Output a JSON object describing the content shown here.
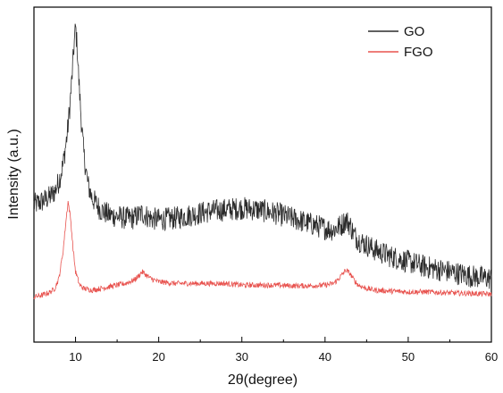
{
  "chart_data": {
    "type": "line",
    "title": "",
    "xlabel": "2θ(degree)",
    "ylabel": "Intensity (a.u.)",
    "xlim": [
      5,
      60
    ],
    "x_ticks": [
      10,
      20,
      30,
      40,
      50,
      60
    ],
    "y_ticks_shown": false,
    "grid": false,
    "legend_position": "top-right",
    "series": [
      {
        "name": "GO",
        "color": "#2b2b2b",
        "x": [
          5,
          6,
          7,
          7.5,
          8,
          8.5,
          9,
          9.3,
          9.6,
          9.8,
          10,
          10.2,
          10.4,
          10.7,
          11,
          11.5,
          12,
          13,
          14,
          15,
          16,
          17,
          18,
          19,
          20,
          22,
          24,
          26,
          28,
          30,
          32,
          34,
          36,
          38,
          40,
          41,
          42,
          42.5,
          43,
          43.5,
          44,
          45,
          46,
          48,
          50,
          52,
          54,
          56,
          58,
          60
        ],
        "values": [
          0.41,
          0.42,
          0.435,
          0.45,
          0.48,
          0.53,
          0.62,
          0.7,
          0.8,
          0.88,
          0.94,
          0.88,
          0.78,
          0.66,
          0.56,
          0.47,
          0.43,
          0.395,
          0.38,
          0.375,
          0.37,
          0.37,
          0.385,
          0.37,
          0.365,
          0.37,
          0.38,
          0.39,
          0.395,
          0.4,
          0.395,
          0.385,
          0.37,
          0.355,
          0.34,
          0.335,
          0.35,
          0.365,
          0.35,
          0.32,
          0.305,
          0.29,
          0.275,
          0.255,
          0.24,
          0.225,
          0.215,
          0.205,
          0.195,
          0.19
        ]
      },
      {
        "name": "FGO",
        "color": "#e8534f",
        "x": [
          5,
          6,
          7,
          7.5,
          8,
          8.5,
          8.8,
          9.1,
          9.4,
          9.7,
          10,
          10.5,
          11,
          12,
          13,
          14,
          15,
          16,
          17,
          17.5,
          18,
          18.5,
          19,
          20,
          22,
          24,
          26,
          28,
          30,
          32,
          34,
          36,
          38,
          40,
          41,
          41.5,
          42,
          42.5,
          43,
          43.5,
          44,
          45,
          46,
          48,
          50,
          52,
          54,
          56,
          58,
          60
        ],
        "values": [
          0.135,
          0.14,
          0.15,
          0.16,
          0.19,
          0.27,
          0.35,
          0.42,
          0.37,
          0.28,
          0.21,
          0.17,
          0.16,
          0.155,
          0.16,
          0.165,
          0.17,
          0.175,
          0.185,
          0.195,
          0.21,
          0.2,
          0.19,
          0.18,
          0.175,
          0.175,
          0.175,
          0.175,
          0.17,
          0.17,
          0.17,
          0.168,
          0.168,
          0.17,
          0.175,
          0.185,
          0.2,
          0.215,
          0.205,
          0.185,
          0.17,
          0.16,
          0.155,
          0.152,
          0.15,
          0.15,
          0.148,
          0.146,
          0.145,
          0.143
        ]
      }
    ]
  }
}
